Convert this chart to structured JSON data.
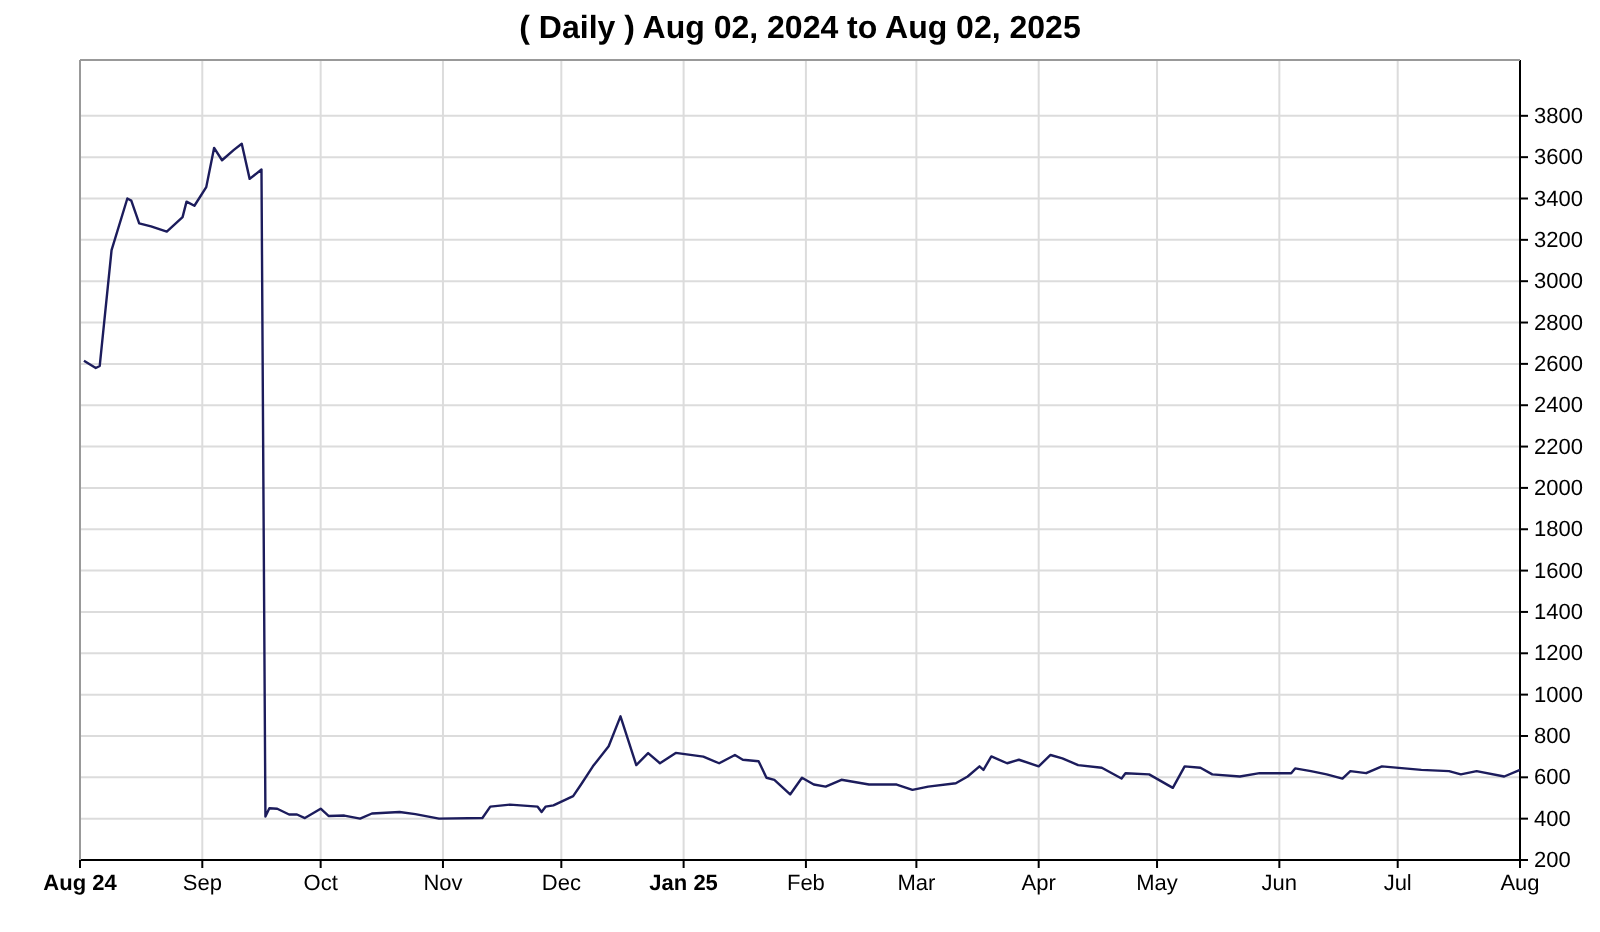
{
  "chart_data": {
    "type": "line",
    "title": "( Daily ) Aug 02, 2024 to Aug 02, 2025",
    "x": [
      "2024-08-02",
      "2024-08-05",
      "2024-08-06",
      "2024-08-09",
      "2024-08-13",
      "2024-08-14",
      "2024-08-16",
      "2024-08-19",
      "2024-08-23",
      "2024-08-27",
      "2024-08-28",
      "2024-08-30",
      "2024-09-02",
      "2024-09-04",
      "2024-09-06",
      "2024-09-09",
      "2024-09-11",
      "2024-09-13",
      "2024-09-16",
      "2024-09-17",
      "2024-09-18",
      "2024-09-20",
      "2024-09-23",
      "2024-09-25",
      "2024-09-27",
      "2024-10-01",
      "2024-10-03",
      "2024-10-07",
      "2024-10-11",
      "2024-10-14",
      "2024-10-21",
      "2024-10-25",
      "2024-10-31",
      "2024-11-11",
      "2024-11-13",
      "2024-11-18",
      "2024-11-25",
      "2024-11-26",
      "2024-11-27",
      "2024-11-29",
      "2024-12-04",
      "2024-12-06",
      "2024-12-09",
      "2024-12-13",
      "2024-12-16",
      "2024-12-20",
      "2024-12-23",
      "2024-12-26",
      "2024-12-30",
      "2025-01-06",
      "2025-01-10",
      "2025-01-14",
      "2025-01-16",
      "2025-01-20",
      "2025-01-22",
      "2025-01-24",
      "2025-01-28",
      "2025-01-31",
      "2025-02-03",
      "2025-02-06",
      "2025-02-10",
      "2025-02-17",
      "2025-02-24",
      "2025-02-28",
      "2025-03-04",
      "2025-03-11",
      "2025-03-14",
      "2025-03-17",
      "2025-03-18",
      "2025-03-20",
      "2025-03-24",
      "2025-03-27",
      "2025-04-01",
      "2025-04-04",
      "2025-04-07",
      "2025-04-11",
      "2025-04-17",
      "2025-04-22",
      "2025-04-23",
      "2025-04-29",
      "2025-05-05",
      "2025-05-08",
      "2025-05-12",
      "2025-05-15",
      "2025-05-22",
      "2025-05-27",
      "2025-06-04",
      "2025-06-05",
      "2025-06-09",
      "2025-06-13",
      "2025-06-17",
      "2025-06-19",
      "2025-06-23",
      "2025-06-27",
      "2025-07-07",
      "2025-07-14",
      "2025-07-17",
      "2025-07-21",
      "2025-07-28",
      "2025-08-01"
    ],
    "series": [
      {
        "color": "#1c1c5c",
        "values": [
          2615,
          2580,
          2590,
          3150,
          3400,
          3390,
          3280,
          3265,
          3240,
          3310,
          3385,
          3365,
          3455,
          3645,
          3585,
          3635,
          3665,
          3495,
          3540,
          410,
          450,
          448,
          420,
          420,
          403,
          448,
          413,
          415,
          400,
          425,
          432,
          422,
          400,
          403,
          458,
          468,
          458,
          432,
          458,
          464,
          509,
          565,
          653,
          750,
          895,
          659,
          717,
          668,
          718,
          700,
          668,
          708,
          685,
          678,
          598,
          588,
          517,
          598,
          565,
          555,
          588,
          565,
          565,
          539,
          555,
          571,
          604,
          653,
          636,
          701,
          668,
          685,
          653,
          708,
          692,
          659,
          646,
          594,
          620,
          614,
          549,
          653,
          646,
          614,
          604,
          620,
          620,
          643,
          630,
          614,
          594,
          630,
          620,
          653,
          636,
          630,
          614,
          630,
          604,
          636
        ]
      }
    ],
    "xlim": [
      "2024-08-01",
      "2025-08-01"
    ],
    "xticks": [
      {
        "value": "2024-08-01",
        "label": "Aug 24"
      },
      {
        "value": "2024-09-01",
        "label": "Sep"
      },
      {
        "value": "2024-10-01",
        "label": "Oct"
      },
      {
        "value": "2024-11-01",
        "label": "Nov"
      },
      {
        "value": "2024-12-01",
        "label": "Dec"
      },
      {
        "value": "2025-01-01",
        "label": "Jan 25"
      },
      {
        "value": "2025-02-01",
        "label": "Feb"
      },
      {
        "value": "2025-03-01",
        "label": "Mar"
      },
      {
        "value": "2025-04-01",
        "label": "Apr"
      },
      {
        "value": "2025-05-01",
        "label": "May"
      },
      {
        "value": "2025-06-01",
        "label": "Jun"
      },
      {
        "value": "2025-07-01",
        "label": "Jul"
      },
      {
        "value": "2025-08-01",
        "label": "Aug"
      }
    ],
    "ylim": [
      200,
      4070
    ],
    "yticks": [
      200,
      400,
      600,
      800,
      1000,
      1200,
      1400,
      1600,
      1800,
      2000,
      2200,
      2400,
      2600,
      2800,
      3000,
      3200,
      3400,
      3600,
      3800
    ],
    "grid": true
  }
}
